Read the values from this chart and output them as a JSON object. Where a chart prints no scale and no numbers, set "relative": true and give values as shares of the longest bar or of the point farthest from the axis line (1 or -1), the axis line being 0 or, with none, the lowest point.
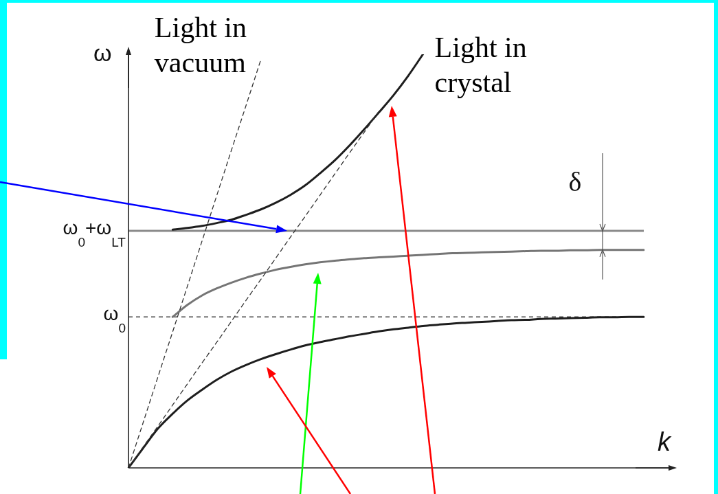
{
  "chart_data": {
    "type": "line",
    "relative": true,
    "xlabel": "k",
    "ylabel": "ω",
    "categories": [
      null,
      null,
      null,
      null,
      null,
      null,
      null,
      null,
      null,
      null,
      null,
      null,
      null,
      null,
      null,
      null,
      null,
      null,
      null,
      null,
      null,
      null,
      null,
      null,
      null,
      null,
      null,
      null,
      null,
      null,
      null,
      null,
      null,
      null,
      null,
      null
    ],
    "series": [
      {
        "name": "Light in vacuum",
        "color": "#333333",
        "line_style": "dashed",
        "values": [
          0,
          0.11,
          0.22,
          0.329,
          0.439,
          0.549,
          0.659,
          0.769,
          0.878,
          0.988,
          null,
          null,
          null,
          null,
          null,
          null,
          null,
          null,
          null,
          null,
          null,
          null,
          null,
          null,
          null,
          null,
          null,
          null,
          null,
          null,
          null,
          null,
          null,
          null,
          null,
          null
        ]
      },
      {
        "color": "#333333",
        "line_style": "dashed",
        "values": [
          0,
          0.051,
          0.101,
          0.152,
          0.203,
          0.254,
          0.304,
          0.355,
          0.406,
          0.456,
          0.507,
          0.558,
          0.608,
          0.659,
          0.71,
          0.761,
          0.811,
          0.862,
          null,
          null,
          null,
          null,
          null,
          null,
          null,
          null,
          null,
          null,
          null,
          null,
          null,
          null,
          null,
          null,
          null,
          null
        ]
      },
      {
        "name": "Light in crystal",
        "color": "#1e1e1e",
        "values": [
          null,
          null,
          null,
          0.576,
          0.58,
          0.585,
          0.592,
          0.6,
          0.612,
          0.625,
          0.641,
          0.66,
          0.683,
          0.712,
          0.743,
          0.779,
          0.818,
          0.859,
          0.901,
          0.948,
          1,
          null,
          null,
          null,
          null,
          null,
          null,
          null,
          null,
          null,
          null,
          null,
          null,
          null,
          null,
          null
        ]
      },
      {
        "color": "#757575",
        "values": [
          null,
          null,
          null,
          0.365,
          0.394,
          0.417,
          0.434,
          0.448,
          0.46,
          0.47,
          0.479,
          0.486,
          0.492,
          0.497,
          0.501,
          0.504,
          0.507,
          0.509,
          0.511,
          0.513,
          0.515,
          0.517,
          0.519,
          0.52,
          0.521,
          0.522,
          0.523,
          0.524,
          0.525,
          0.525,
          0.526,
          0.526,
          0.527,
          0.527,
          0.527,
          0.527
        ]
      },
      {
        "color": "#1e1e1e",
        "values": [
          0,
          0.048,
          0.095,
          0.131,
          0.163,
          0.189,
          0.213,
          0.233,
          0.249,
          0.263,
          0.275,
          0.286,
          0.296,
          0.304,
          0.311,
          0.318,
          0.324,
          0.33,
          0.335,
          0.339,
          0.343,
          0.346,
          0.349,
          0.351,
          0.353,
          0.355,
          0.357,
          0.358,
          0.36,
          0.361,
          0.362,
          0.363,
          0.364,
          0.364,
          0.365,
          0.365
        ]
      }
    ],
    "ref_lines": [
      {
        "axis": "y",
        "value": 0.573,
        "label": "ω$_{0}$+ω$_{LT}$",
        "color": "#8a8a8a",
        "line_style": "solid"
      },
      {
        "axis": "y",
        "value": 0.365,
        "label": "ω$_{0}$",
        "color": "#444444",
        "line_style": "dashed"
      }
    ],
    "annotations": [
      "δ"
    ]
  }
}
